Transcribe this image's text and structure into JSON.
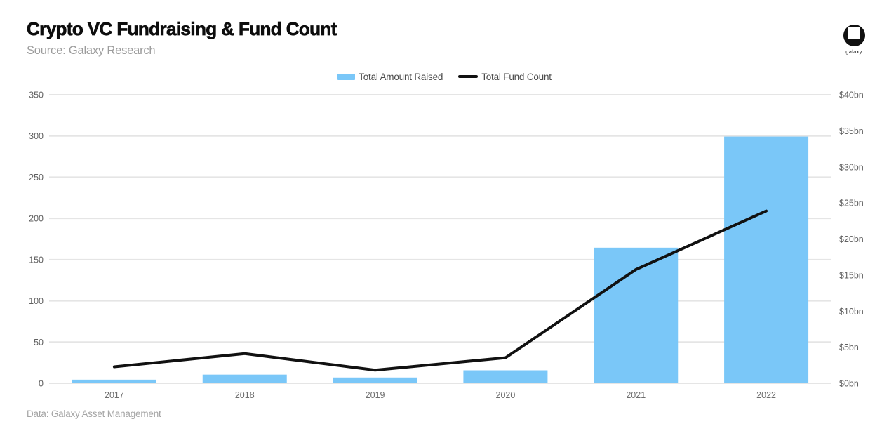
{
  "header": {
    "title": "Crypto VC Fundraising & Fund Count",
    "source": "Source: Galaxy Research",
    "logo": {
      "icon": "galaxy-circle-square-logo",
      "wordmark": "galaxy"
    }
  },
  "legend": {
    "position": "top-center",
    "items": [
      {
        "id": "total-amount-raised",
        "label": "Total Amount Raised",
        "swatch": "bar",
        "color": "#7AC7F8"
      },
      {
        "id": "total-fund-count",
        "label": "Total Fund Count",
        "swatch": "line",
        "color": "#111111"
      }
    ]
  },
  "footer": {
    "note": "Data: Galaxy Asset Management"
  },
  "chart_data": {
    "type": "bar",
    "subtype": "combo bar + line, dual axis",
    "title": "Crypto VC Fundraising & Fund Count",
    "categories": [
      "2017",
      "2018",
      "2019",
      "2020",
      "2021",
      "2022"
    ],
    "series": [
      {
        "name": "Total Amount Raised",
        "type": "bar",
        "axis": "right",
        "unit": "$bn",
        "color": "#7AC7F8",
        "values": [
          0.5,
          1.2,
          0.8,
          1.8,
          18.8,
          34.2
        ]
      },
      {
        "name": "Total Fund Count",
        "type": "line",
        "axis": "left",
        "unit": "funds",
        "color": "#111111",
        "values": [
          20,
          36,
          16,
          31,
          138,
          209
        ]
      }
    ],
    "left_axis": {
      "min": 0,
      "max": 350,
      "tick_step": 50,
      "ticks": [
        350,
        300,
        250,
        200,
        150,
        100,
        50,
        0
      ]
    },
    "right_axis": {
      "min": 0,
      "max": 40,
      "tick_step": 5,
      "tick_labels": [
        "$40bn",
        "$35bn",
        "$30bn",
        "$25bn",
        "$20bn",
        "$15bn",
        "$10bn",
        "$5bn",
        "$0bn"
      ]
    },
    "grid": "horizontal gridlines aligned to left axis, no vertical axis lines",
    "legend_position": "top-center"
  }
}
